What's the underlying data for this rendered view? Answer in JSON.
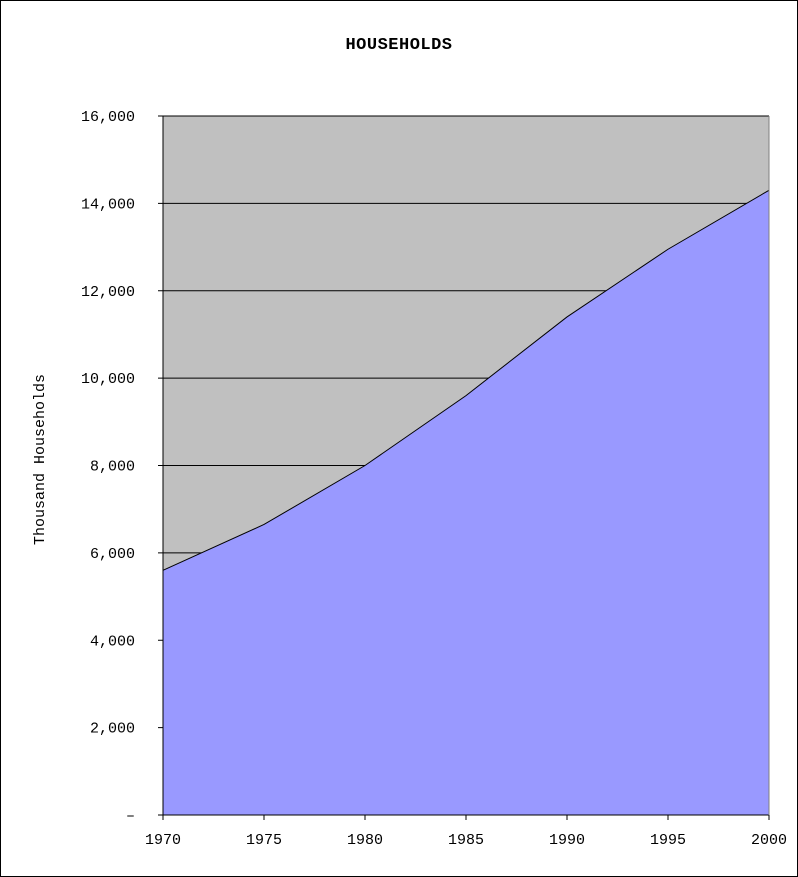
{
  "chart_data": {
    "type": "area",
    "title": "HOUSEHOLDS",
    "xlabel": "",
    "ylabel": "Thousand Households",
    "x": [
      1970,
      1975,
      1980,
      1985,
      1990,
      1995,
      2000
    ],
    "x_tick_labels": [
      "1970",
      "1975",
      "1980",
      "1985",
      "1990",
      "1995",
      "2000"
    ],
    "y_tick_labels": [
      "–",
      "2,000",
      "4,000",
      "6,000",
      "8,000",
      "10,000",
      "12,000",
      "14,000",
      "16,000"
    ],
    "y_ticks": [
      0,
      2000,
      4000,
      6000,
      8000,
      10000,
      12000,
      14000,
      16000
    ],
    "ylim": [
      0,
      16000
    ],
    "xlim": [
      1970,
      2000
    ],
    "grid": "horizontal",
    "legend": "none",
    "series": [
      {
        "values": [
          5600,
          6650,
          8000,
          9600,
          11400,
          12950,
          14300
        ]
      }
    ],
    "colors": {
      "plot_background": "#c0c0c0",
      "area_fill": "#9999ff",
      "line": "#000000",
      "gridline": "#000000"
    }
  }
}
